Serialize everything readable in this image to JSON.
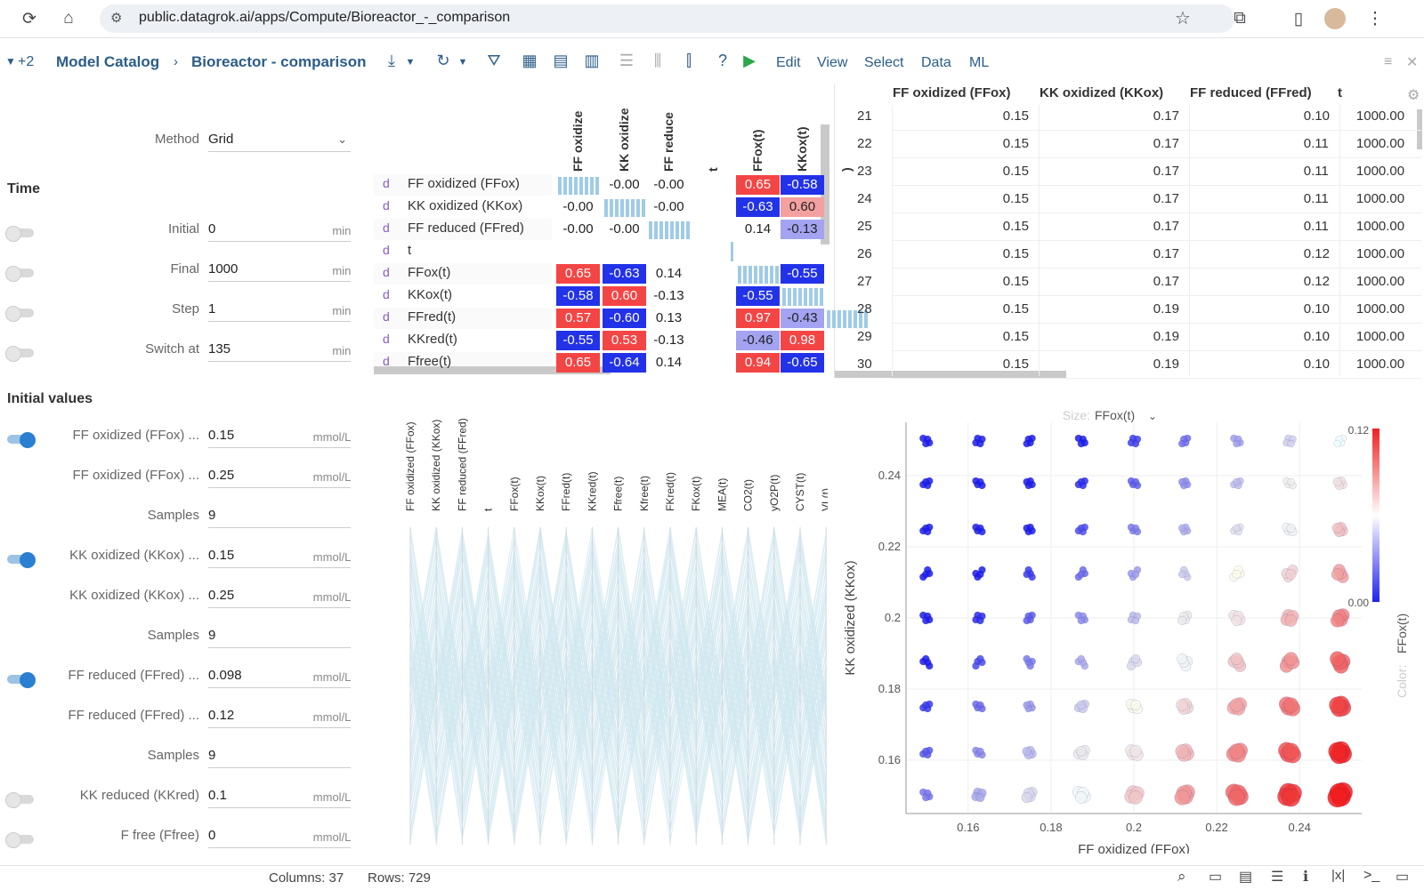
{
  "browser": {
    "url": "public.datagrok.ai/apps/Compute/Bioreactor_-_comparison"
  },
  "app": {
    "toolbar_left": "+2",
    "breadcrumb": [
      "Model Catalog",
      "Bioreactor - comparison"
    ],
    "menu": [
      "Edit",
      "View",
      "Select",
      "Data",
      "ML"
    ]
  },
  "sidebar": {
    "method_label": "Method",
    "method_value": "Grid",
    "time_section": "Time",
    "time_rows": [
      {
        "label": "Initial",
        "value": "0",
        "unit": "min",
        "on": false
      },
      {
        "label": "Final",
        "value": "1000",
        "unit": "min",
        "on": false
      },
      {
        "label": "Step",
        "value": "1",
        "unit": "min",
        "on": false
      },
      {
        "label": "Switch at",
        "value": "135",
        "unit": "min",
        "on": false
      }
    ],
    "init_section": "Initial values",
    "init_rows": [
      {
        "label": "FF oxidized (FFox) ...",
        "value": "0.15",
        "unit": "mmol/L",
        "toggle": "on"
      },
      {
        "label": "FF oxidized (FFox) ...",
        "value": "0.25",
        "unit": "mmol/L",
        "toggle": "none"
      },
      {
        "label": "Samples",
        "value": "9",
        "unit": "",
        "toggle": "none"
      },
      {
        "label": "KK oxidized (KKox) ...",
        "value": "0.15",
        "unit": "mmol/L",
        "toggle": "on"
      },
      {
        "label": "KK oxidized (KKox) ...",
        "value": "0.25",
        "unit": "mmol/L",
        "toggle": "none"
      },
      {
        "label": "Samples",
        "value": "9",
        "unit": "",
        "toggle": "none"
      },
      {
        "label": "FF reduced (FFred) ...",
        "value": "0.098",
        "unit": "mmol/L",
        "toggle": "on"
      },
      {
        "label": "FF reduced (FFred) ...",
        "value": "0.12",
        "unit": "mmol/L",
        "toggle": "none"
      },
      {
        "label": "Samples",
        "value": "9",
        "unit": "",
        "toggle": "none"
      },
      {
        "label": "KK reduced (KKred)",
        "value": "0.1",
        "unit": "mmol/L",
        "toggle": "off"
      },
      {
        "label": "F free (Ffree)",
        "value": "0",
        "unit": "mmol/L",
        "toggle": "off"
      }
    ]
  },
  "corr": {
    "col_heads": [
      "FF oxidize",
      "KK oxidize",
      "FF reduce",
      "t",
      "FFox(t)",
      "KKox(t)",
      ")"
    ],
    "row_marker": "d",
    "rows": [
      {
        "label": "FF oxidized (FFox)",
        "cells": [
          "",
          "-0.00",
          "-0.00",
          "",
          "0.65",
          "-0.58",
          ""
        ]
      },
      {
        "label": "KK oxidized (KKox)",
        "cells": [
          "-0.00",
          "",
          "-0.00",
          "",
          "-0.63",
          "0.60",
          ""
        ]
      },
      {
        "label": "FF reduced (FFred)",
        "cells": [
          "-0.00",
          "-0.00",
          "",
          "",
          "0.14",
          "-0.13",
          ""
        ]
      },
      {
        "label": "t",
        "cells": [
          "",
          "",
          "",
          "",
          "",
          "",
          ""
        ]
      },
      {
        "label": "FFox(t)",
        "cells": [
          "0.65",
          "-0.63",
          "0.14",
          "",
          "",
          "-0.55",
          ""
        ]
      },
      {
        "label": "KKox(t)",
        "cells": [
          "-0.58",
          "0.60",
          "-0.13",
          "",
          "-0.55",
          "",
          ""
        ]
      },
      {
        "label": "FFred(t)",
        "cells": [
          "0.57",
          "-0.60",
          "0.13",
          "",
          "0.97",
          "-0.43",
          ""
        ]
      },
      {
        "label": "KKred(t)",
        "cells": [
          "-0.55",
          "0.53",
          "-0.13",
          "",
          "-0.46",
          "0.98",
          ""
        ]
      },
      {
        "label": "Ffree(t)",
        "cells": [
          "0.65",
          "-0.64",
          "0.14",
          "",
          "0.94",
          "-0.65",
          ""
        ]
      }
    ],
    "colors": {
      "red": "#f44545",
      "blue": "#2232e8",
      "lightred": "#f4a0a0",
      "lightblue": "#a3a3f2"
    }
  },
  "grid": {
    "headers": [
      "FF oxidized (FFox)",
      "KK oxidized (KKox)",
      "FF reduced (FFred)",
      "t"
    ],
    "rows": [
      [
        "21",
        "0.15",
        "0.17",
        "0.10",
        "1000.00"
      ],
      [
        "22",
        "0.15",
        "0.17",
        "0.11",
        "1000.00"
      ],
      [
        "23",
        "0.15",
        "0.17",
        "0.11",
        "1000.00"
      ],
      [
        "24",
        "0.15",
        "0.17",
        "0.11",
        "1000.00"
      ],
      [
        "25",
        "0.15",
        "0.17",
        "0.11",
        "1000.00"
      ],
      [
        "26",
        "0.15",
        "0.17",
        "0.12",
        "1000.00"
      ],
      [
        "27",
        "0.15",
        "0.17",
        "0.12",
        "1000.00"
      ],
      [
        "28",
        "0.15",
        "0.19",
        "0.10",
        "1000.00"
      ],
      [
        "29",
        "0.15",
        "0.19",
        "0.10",
        "1000.00"
      ],
      [
        "30",
        "0.15",
        "0.19",
        "0.10",
        "1000.00"
      ]
    ]
  },
  "pc": {
    "axes": [
      "FF oxidized (FFox)",
      "KK oxidized (KKox)",
      "FF reduced (FFred)",
      "t",
      "FFox(t)",
      "KKox(t)",
      "FFred(t)",
      "KKred(t)",
      "Ffree(t)",
      "Kfree(t)",
      "FKred(t)",
      "FKox(t)",
      "MEA(t)",
      "CO2(t)",
      "yO2P(t)",
      "CYST(t)",
      "VL(t)"
    ]
  },
  "chart_data": {
    "type": "scatter",
    "xlabel": "FF oxidized (FFox)",
    "ylabel": "KK oxidized (KKox)",
    "size_label": "Size:",
    "size_value": "FFox(t)",
    "color_label": "Color:",
    "color_value": "FFox(t)",
    "x_ticks": [
      "0.16",
      "0.18",
      "0.2",
      "0.22",
      "0.24"
    ],
    "y_ticks": [
      "0.16",
      "0.18",
      "0.2",
      "0.22",
      "0.24"
    ],
    "xlim": [
      0.145,
      0.255
    ],
    "ylim": [
      0.145,
      0.255
    ],
    "x": [
      0.15,
      0.1625,
      0.175,
      0.1875,
      0.2,
      0.2125,
      0.225,
      0.2375,
      0.25
    ],
    "y": [
      0.15,
      0.1625,
      0.175,
      0.1875,
      0.2,
      0.2125,
      0.225,
      0.2375,
      0.25
    ],
    "color_range": [
      0.0,
      0.12
    ],
    "color_max_label": "0.12",
    "color_min_label": "0.00"
  },
  "status": {
    "columns": "Columns: 37",
    "rows": "Rows: 729"
  }
}
